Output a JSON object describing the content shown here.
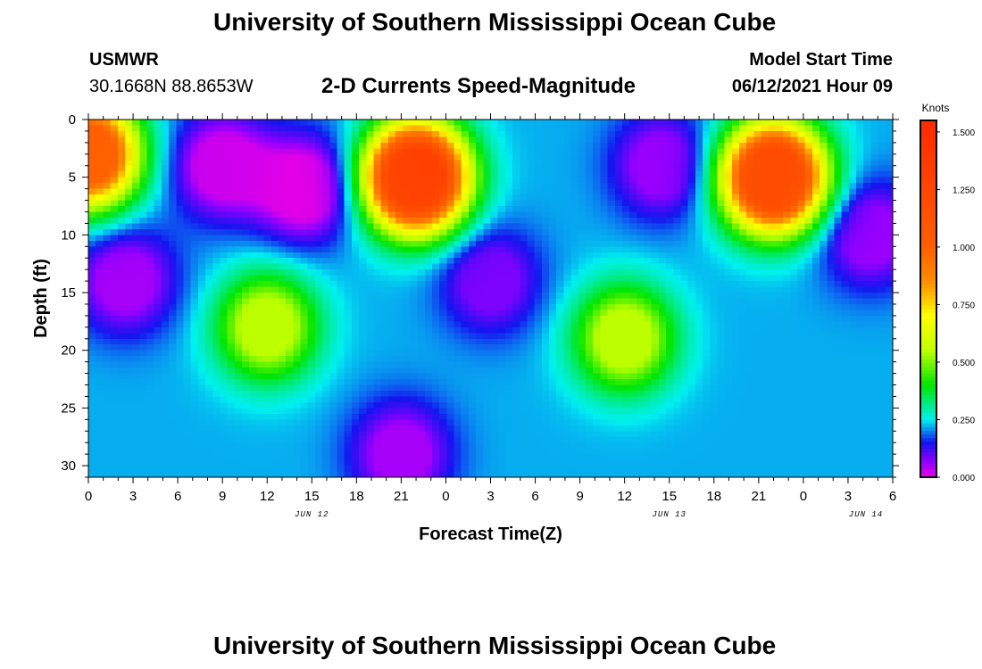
{
  "header": {
    "title": "University of Southern Mississippi Ocean Cube",
    "station_id": "USMWR",
    "coords": "30.1668N  88.8653W",
    "subtitle": "2-D Currents Speed-Magnitude",
    "start_label": "Model Start Time",
    "start_value": "06/12/2021 Hour 09"
  },
  "footer": {
    "title": "University of Southern Mississippi Ocean Cube"
  },
  "chart_data": {
    "type": "heatmap",
    "ylabel": "Depth (ft)",
    "xlabel": "Forecast Time(Z)",
    "y_ticks": [
      0,
      5,
      10,
      15,
      20,
      25,
      30
    ],
    "ylim": [
      0,
      31
    ],
    "y_inverted": true,
    "x_tick_labels": [
      "0",
      "3",
      "6",
      "9",
      "12",
      "15",
      "18",
      "21",
      "0",
      "3",
      "6",
      "9",
      "12",
      "15",
      "18",
      "21",
      "0",
      "3",
      "6"
    ],
    "x_hours_range": [
      0,
      54
    ],
    "date_labels": [
      {
        "text": "JUN 12",
        "hour": 15
      },
      {
        "text": "JUN 13",
        "hour": 39
      },
      {
        "text": "JUN 14",
        "hour": 54
      }
    ],
    "colorbar": {
      "title": "Knots",
      "ticks": [
        "0.000",
        "0.250",
        "0.500",
        "0.750",
        "1.000",
        "1.250",
        "1.500"
      ],
      "range": [
        0,
        1.55
      ]
    },
    "speed_features_knots": [
      {
        "hour": 0,
        "depth": 3,
        "speed": 1.0
      },
      {
        "hour": 9,
        "depth": 4,
        "speed": 0.02
      },
      {
        "hour": 14.5,
        "depth": 6,
        "speed": 0.0
      },
      {
        "hour": 2.5,
        "depth": 14,
        "speed": 0.05
      },
      {
        "hour": 12,
        "depth": 18,
        "speed": 0.55
      },
      {
        "hour": 22,
        "depth": 5,
        "speed": 1.3
      },
      {
        "hour": 21,
        "depth": 29,
        "speed": 0.05
      },
      {
        "hour": 27,
        "depth": 14,
        "speed": 0.08
      },
      {
        "hour": 36,
        "depth": 19,
        "speed": 0.55
      },
      {
        "hour": 38.5,
        "depth": 4,
        "speed": 0.06
      },
      {
        "hour": 46,
        "depth": 5,
        "speed": 1.2
      },
      {
        "hour": 52.5,
        "depth": 10,
        "speed": 0.06
      }
    ]
  }
}
